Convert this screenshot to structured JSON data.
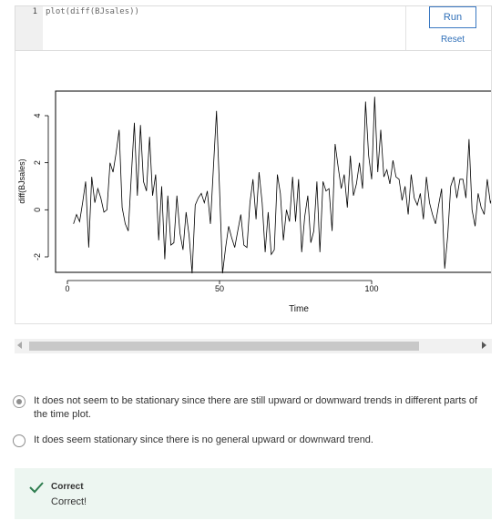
{
  "editor": {
    "line_number": "1",
    "code": "plot(diff(BJsales))",
    "run_label": "Run",
    "reset_label": "Reset"
  },
  "chart_data": {
    "type": "line",
    "xlabel": "Time",
    "ylabel": "diff(BJsales)",
    "xlim": [
      0,
      140
    ],
    "ylim": [
      -2.9,
      4.9
    ],
    "x_ticks": [
      0,
      50,
      100
    ],
    "y_ticks": [
      -2,
      0,
      2,
      4
    ],
    "x_start": 2,
    "grid": false,
    "legend": "none",
    "line_color": "#000000",
    "values": [
      -0.6,
      -0.2,
      -0.5,
      0.3,
      1.2,
      -1.6,
      1.4,
      0.3,
      0.9,
      0.5,
      -0.1,
      0.0,
      2.0,
      1.6,
      2.4,
      3.4,
      0.1,
      -0.6,
      -0.9,
      1.4,
      3.7,
      0.6,
      3.6,
      1.2,
      0.8,
      3.1,
      0.6,
      1.5,
      -1.3,
      1.0,
      -2.1,
      0.6,
      -1.5,
      -1.4,
      0.6,
      -1.0,
      -1.7,
      -0.1,
      -1.1,
      -2.7,
      0.2,
      0.5,
      0.7,
      0.3,
      0.8,
      -0.6,
      1.8,
      4.2,
      0.9,
      -2.7,
      -1.6,
      -0.7,
      -1.2,
      -1.6,
      -0.9,
      -0.2,
      -1.5,
      -1.6,
      0.3,
      1.3,
      -0.4,
      1.6,
      0.3,
      -1.8,
      -0.1,
      -1.9,
      -1.7,
      1.5,
      0.7,
      -1.3,
      0.0,
      -0.5,
      1.4,
      -0.5,
      1.3,
      -1.8,
      -0.3,
      0.6,
      -1.4,
      -0.9,
      1.2,
      -1.8,
      1.2,
      0.8,
      0.9,
      -0.9,
      2.8,
      1.8,
      0.9,
      1.5,
      0.1,
      2.3,
      0.6,
      1.1,
      2.0,
      0.9,
      4.6,
      2.3,
      1.3,
      4.8,
      1.6,
      3.4,
      1.4,
      1.7,
      1.1,
      2.1,
      1.4,
      1.3,
      0.4,
      1.0,
      -0.2,
      1.5,
      0.5,
      0.2,
      0.7,
      -0.4,
      1.4,
      0.3,
      -0.2,
      -0.6,
      0.2,
      0.9,
      -2.5,
      -1.1,
      1.0,
      1.4,
      0.5,
      1.3,
      1.3,
      0.5,
      3.0,
      0.0,
      -0.7,
      0.7,
      0.1,
      -0.2,
      1.3,
      0.3,
      0.6,
      -0.7
    ]
  },
  "options": [
    {
      "text": "It does not seem to be stationary since there are still upward or downward trends in different parts of the time plot.",
      "selected": true
    },
    {
      "text": "It does seem stationary since there is no general upward or downward trend.",
      "selected": false
    }
  ],
  "feedback": {
    "title": "Correct",
    "message": "Correct!",
    "accent_color": "#2e7d4f",
    "background_color": "#edf6f1"
  },
  "colors": {
    "button_blue": "#2f6fb8"
  }
}
